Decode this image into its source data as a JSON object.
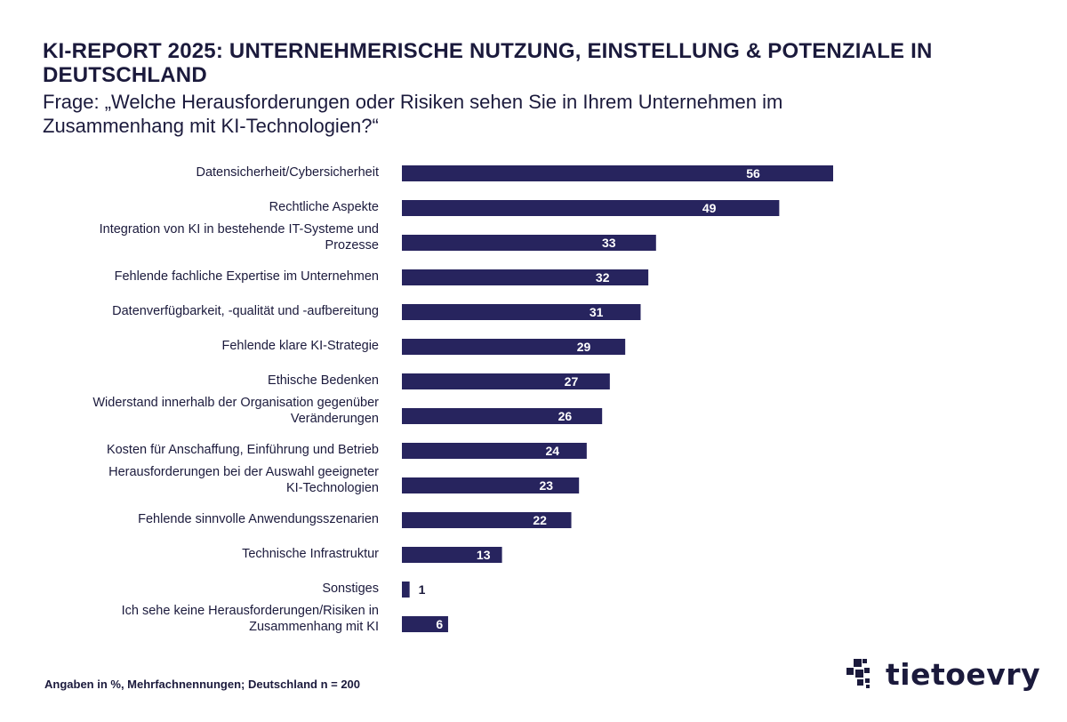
{
  "chart_data": {
    "type": "bar",
    "orientation": "horizontal",
    "title": "KI-REPORT 2025: UNTERNEHMERISCHE NUTZUNG, EINSTELLUNG & POTENZIALE IN DEUTSCHLAND",
    "subtitle": "Frage: „Welche Herausforderungen oder Risiken sehen Sie in Ihrem Unternehmen im Zusammenhang mit KI-Technologien?“",
    "categories": [
      [
        "Datensicherheit/Cybersicherheit"
      ],
      [
        "Rechtliche Aspekte"
      ],
      [
        "Integration von KI in bestehende IT-Systeme und",
        "Prozesse"
      ],
      [
        "Fehlende fachliche Expertise im Unternehmen"
      ],
      [
        "Datenverfügbarkeit, -qualität und -aufbereitung"
      ],
      [
        "Fehlende klare KI-Strategie"
      ],
      [
        "Ethische Bedenken"
      ],
      [
        "Widerstand innerhalb der Organisation gegenüber",
        "Veränderungen"
      ],
      [
        "Kosten für Anschaffung, Einführung und Betrieb"
      ],
      [
        "Herausforderungen bei der Auswahl geeigneter",
        "KI-Technologien"
      ],
      [
        "Fehlende sinnvolle Anwendungsszenarien"
      ],
      [
        "Technische Infrastruktur"
      ],
      [
        "Sonstiges"
      ],
      [
        "Ich sehe keine Herausforderungen/Risiken in",
        "Zusammenhang mit KI"
      ]
    ],
    "values": [
      56,
      49,
      33,
      32,
      31,
      29,
      27,
      26,
      24,
      23,
      22,
      13,
      1,
      6
    ],
    "bar_color": "#27245e",
    "xlim": [
      0,
      56
    ],
    "grid": false,
    "legend": "none"
  },
  "footnote": "Angaben in %, Mehrfachnennungen; Deutschland n = 200",
  "logo": {
    "text": "tietoevry",
    "icon": "tietoevry-pixel-logo",
    "color": "#1b1a3c"
  }
}
